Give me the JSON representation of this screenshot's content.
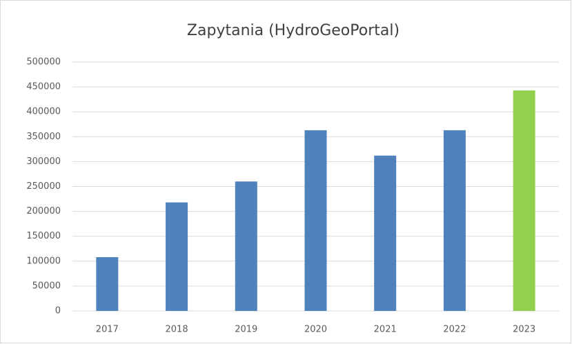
{
  "chart_data": {
    "type": "bar",
    "title": "Zapytania (HydroGeoPortal)",
    "categories": [
      "2017",
      "2018",
      "2019",
      "2020",
      "2021",
      "2022",
      "2023"
    ],
    "values": [
      108000,
      218000,
      260000,
      363000,
      312000,
      363000,
      443000
    ],
    "colors": [
      "#4f81bd",
      "#4f81bd",
      "#4f81bd",
      "#4f81bd",
      "#4f81bd",
      "#4f81bd",
      "#92d050"
    ],
    "ylim": [
      0,
      500000
    ],
    "yticks": [
      0,
      50000,
      100000,
      150000,
      200000,
      250000,
      300000,
      350000,
      400000,
      450000,
      500000
    ],
    "grid": true
  }
}
